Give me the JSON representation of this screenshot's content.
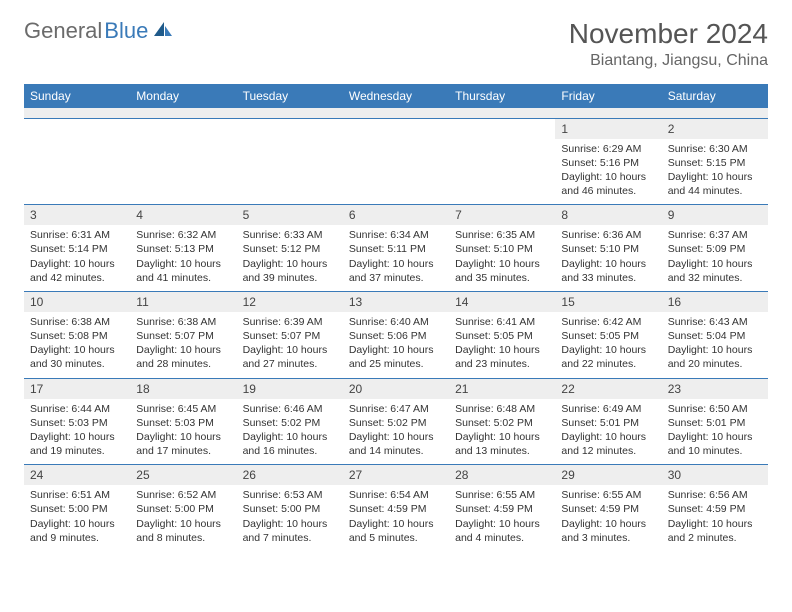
{
  "logo": {
    "part1": "General",
    "part2": "Blue"
  },
  "title": "November 2024",
  "location": "Biantang, Jiangsu, China",
  "colors": {
    "header_bg": "#3a7ab8",
    "header_text": "#ffffff",
    "daynum_bg": "#eeeeee",
    "border": "#3a7ab8",
    "text": "#333333",
    "title_text": "#555555",
    "logo_gray": "#6b6b6b",
    "logo_blue": "#3a7ab8"
  },
  "weekdays": [
    "Sunday",
    "Monday",
    "Tuesday",
    "Wednesday",
    "Thursday",
    "Friday",
    "Saturday"
  ],
  "weeks": [
    [
      null,
      null,
      null,
      null,
      null,
      {
        "n": "1",
        "sr": "6:29 AM",
        "ss": "5:16 PM",
        "dl": "10 hours and 46 minutes."
      },
      {
        "n": "2",
        "sr": "6:30 AM",
        "ss": "5:15 PM",
        "dl": "10 hours and 44 minutes."
      }
    ],
    [
      {
        "n": "3",
        "sr": "6:31 AM",
        "ss": "5:14 PM",
        "dl": "10 hours and 42 minutes."
      },
      {
        "n": "4",
        "sr": "6:32 AM",
        "ss": "5:13 PM",
        "dl": "10 hours and 41 minutes."
      },
      {
        "n": "5",
        "sr": "6:33 AM",
        "ss": "5:12 PM",
        "dl": "10 hours and 39 minutes."
      },
      {
        "n": "6",
        "sr": "6:34 AM",
        "ss": "5:11 PM",
        "dl": "10 hours and 37 minutes."
      },
      {
        "n": "7",
        "sr": "6:35 AM",
        "ss": "5:10 PM",
        "dl": "10 hours and 35 minutes."
      },
      {
        "n": "8",
        "sr": "6:36 AM",
        "ss": "5:10 PM",
        "dl": "10 hours and 33 minutes."
      },
      {
        "n": "9",
        "sr": "6:37 AM",
        "ss": "5:09 PM",
        "dl": "10 hours and 32 minutes."
      }
    ],
    [
      {
        "n": "10",
        "sr": "6:38 AM",
        "ss": "5:08 PM",
        "dl": "10 hours and 30 minutes."
      },
      {
        "n": "11",
        "sr": "6:38 AM",
        "ss": "5:07 PM",
        "dl": "10 hours and 28 minutes."
      },
      {
        "n": "12",
        "sr": "6:39 AM",
        "ss": "5:07 PM",
        "dl": "10 hours and 27 minutes."
      },
      {
        "n": "13",
        "sr": "6:40 AM",
        "ss": "5:06 PM",
        "dl": "10 hours and 25 minutes."
      },
      {
        "n": "14",
        "sr": "6:41 AM",
        "ss": "5:05 PM",
        "dl": "10 hours and 23 minutes."
      },
      {
        "n": "15",
        "sr": "6:42 AM",
        "ss": "5:05 PM",
        "dl": "10 hours and 22 minutes."
      },
      {
        "n": "16",
        "sr": "6:43 AM",
        "ss": "5:04 PM",
        "dl": "10 hours and 20 minutes."
      }
    ],
    [
      {
        "n": "17",
        "sr": "6:44 AM",
        "ss": "5:03 PM",
        "dl": "10 hours and 19 minutes."
      },
      {
        "n": "18",
        "sr": "6:45 AM",
        "ss": "5:03 PM",
        "dl": "10 hours and 17 minutes."
      },
      {
        "n": "19",
        "sr": "6:46 AM",
        "ss": "5:02 PM",
        "dl": "10 hours and 16 minutes."
      },
      {
        "n": "20",
        "sr": "6:47 AM",
        "ss": "5:02 PM",
        "dl": "10 hours and 14 minutes."
      },
      {
        "n": "21",
        "sr": "6:48 AM",
        "ss": "5:02 PM",
        "dl": "10 hours and 13 minutes."
      },
      {
        "n": "22",
        "sr": "6:49 AM",
        "ss": "5:01 PM",
        "dl": "10 hours and 12 minutes."
      },
      {
        "n": "23",
        "sr": "6:50 AM",
        "ss": "5:01 PM",
        "dl": "10 hours and 10 minutes."
      }
    ],
    [
      {
        "n": "24",
        "sr": "6:51 AM",
        "ss": "5:00 PM",
        "dl": "10 hours and 9 minutes."
      },
      {
        "n": "25",
        "sr": "6:52 AM",
        "ss": "5:00 PM",
        "dl": "10 hours and 8 minutes."
      },
      {
        "n": "26",
        "sr": "6:53 AM",
        "ss": "5:00 PM",
        "dl": "10 hours and 7 minutes."
      },
      {
        "n": "27",
        "sr": "6:54 AM",
        "ss": "4:59 PM",
        "dl": "10 hours and 5 minutes."
      },
      {
        "n": "28",
        "sr": "6:55 AM",
        "ss": "4:59 PM",
        "dl": "10 hours and 4 minutes."
      },
      {
        "n": "29",
        "sr": "6:55 AM",
        "ss": "4:59 PM",
        "dl": "10 hours and 3 minutes."
      },
      {
        "n": "30",
        "sr": "6:56 AM",
        "ss": "4:59 PM",
        "dl": "10 hours and 2 minutes."
      }
    ]
  ],
  "labels": {
    "sunrise": "Sunrise:",
    "sunset": "Sunset:",
    "daylight": "Daylight:"
  }
}
